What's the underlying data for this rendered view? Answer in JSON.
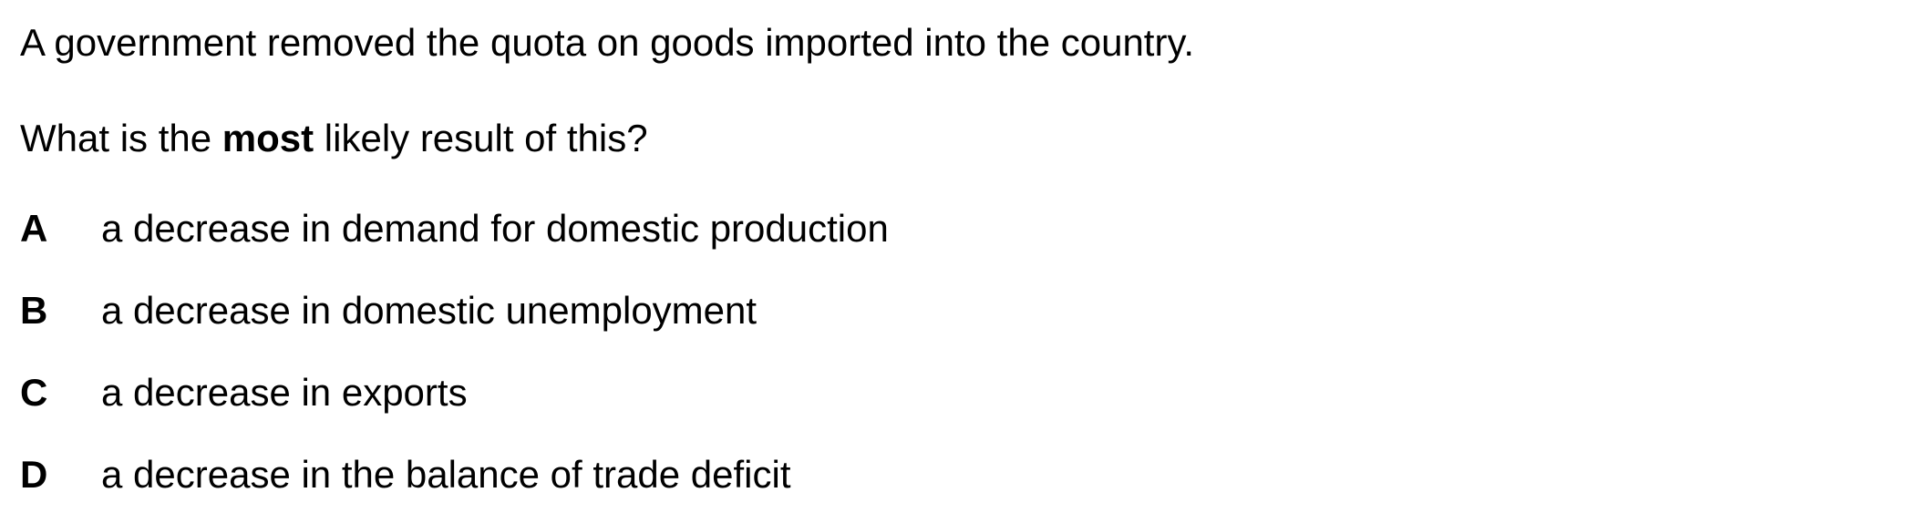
{
  "question": {
    "stem": "A government removed the quota on goods imported into the country.",
    "prompt_before": "What is the ",
    "prompt_emphasis": "most",
    "prompt_after": " likely result of this?"
  },
  "options": [
    {
      "letter": "A",
      "text": "a decrease in demand for domestic production"
    },
    {
      "letter": "B",
      "text": "a decrease in domestic unemployment"
    },
    {
      "letter": "C",
      "text": "a decrease in exports"
    },
    {
      "letter": "D",
      "text": "a decrease in the balance of trade deficit"
    }
  ]
}
